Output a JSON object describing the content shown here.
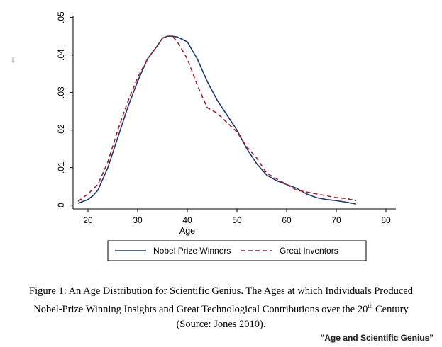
{
  "chart_data": {
    "type": "line",
    "xlabel": "Age",
    "ylabel": "",
    "xlim": [
      17,
      82
    ],
    "ylim": [
      -0.001,
      0.0505
    ],
    "x_ticks": [
      20,
      30,
      40,
      50,
      60,
      70,
      80
    ],
    "x_tick_labels": [
      "20",
      "30",
      "40",
      "50",
      "60",
      "70",
      "80"
    ],
    "y_ticks": [
      0,
      0.01,
      0.02,
      0.03,
      0.04,
      0.05
    ],
    "y_tick_labels": [
      "0",
      ".01",
      ".02",
      ".03",
      ".04",
      ".05"
    ],
    "grid": false,
    "legend_position": "bottom",
    "series": [
      {
        "name": "Nobel Prize Winners",
        "color": "#1f3a6e",
        "style": "solid",
        "x": [
          18,
          20,
          21,
          22,
          24,
          26,
          28,
          30,
          32,
          34,
          35,
          36,
          37,
          38,
          40,
          42,
          44,
          46,
          48,
          50,
          52,
          54,
          56,
          58,
          60,
          62,
          64,
          66,
          68,
          70,
          72,
          74
        ],
        "y": [
          0.0005,
          0.0015,
          0.0025,
          0.004,
          0.01,
          0.018,
          0.026,
          0.033,
          0.039,
          0.0425,
          0.0445,
          0.045,
          0.045,
          0.0448,
          0.0435,
          0.039,
          0.033,
          0.028,
          0.024,
          0.02,
          0.015,
          0.011,
          0.008,
          0.0065,
          0.0055,
          0.0045,
          0.003,
          0.002,
          0.0015,
          0.0012,
          0.0008,
          0.0003
        ]
      },
      {
        "name": "Great Inventors",
        "color": "#a01c2a",
        "style": "dashed",
        "x": [
          18,
          20,
          22,
          24,
          26,
          28,
          30,
          32,
          34,
          35,
          36,
          37,
          38,
          40,
          42,
          44,
          46,
          48,
          50,
          52,
          54,
          56,
          58,
          60,
          62,
          64,
          66,
          68,
          70,
          72,
          74
        ],
        "y": [
          0.001,
          0.003,
          0.0055,
          0.0115,
          0.02,
          0.0275,
          0.034,
          0.039,
          0.0425,
          0.0445,
          0.045,
          0.045,
          0.0435,
          0.039,
          0.032,
          0.026,
          0.0245,
          0.022,
          0.0195,
          0.0155,
          0.0125,
          0.0085,
          0.007,
          0.0055,
          0.004,
          0.0035,
          0.003,
          0.0025,
          0.002,
          0.0018,
          0.0012
        ]
      }
    ]
  },
  "caption": {
    "line1": "Figure 1:  An Age Distribution for Scientific Genius.  The Ages at which Individuals Produced",
    "line2_prefix": "Nobel-Prize Winning Insights and Great Technological Contributions over the 20",
    "line2_sup": "th",
    "line2_suffix": " Century",
    "line3": "(Source: Jones 2010)."
  },
  "watermark": "\"Age and Scientific Genius\"",
  "side_icon": "download-icon"
}
